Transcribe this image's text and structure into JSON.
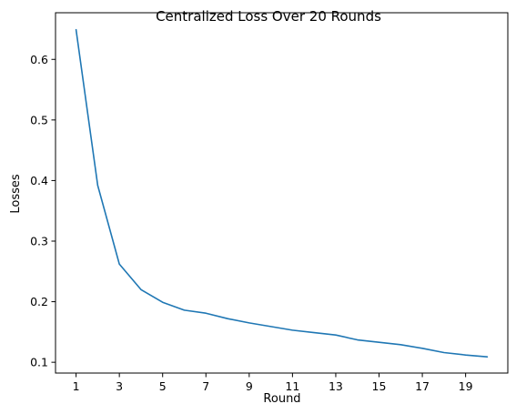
{
  "chart_data": {
    "type": "line",
    "title": "Centralized Loss Over 20 Rounds",
    "xlabel": "Round",
    "ylabel": "Losses",
    "xlim": [
      0.05,
      20.95
    ],
    "ylim": [
      0.0822,
      0.677
    ],
    "xticks": [
      1,
      3,
      5,
      7,
      9,
      11,
      13,
      15,
      17,
      19
    ],
    "yticks": [
      0.1,
      0.2,
      0.3,
      0.4,
      0.5,
      0.6
    ],
    "ytick_labels": [
      "0.1",
      "0.2",
      "0.3",
      "0.4",
      "0.5",
      "0.6"
    ],
    "grid": false,
    "series": [
      {
        "color": "#1f77b4",
        "x": [
          1,
          2,
          3,
          4,
          5,
          6,
          7,
          8,
          9,
          10,
          11,
          12,
          13,
          14,
          15,
          16,
          17,
          18,
          19,
          20
        ],
        "y": [
          0.649,
          0.392,
          0.262,
          0.22,
          0.199,
          0.186,
          0.181,
          0.172,
          0.165,
          0.159,
          0.153,
          0.149,
          0.145,
          0.137,
          0.133,
          0.129,
          0.123,
          0.116,
          0.112,
          0.109
        ]
      }
    ]
  }
}
